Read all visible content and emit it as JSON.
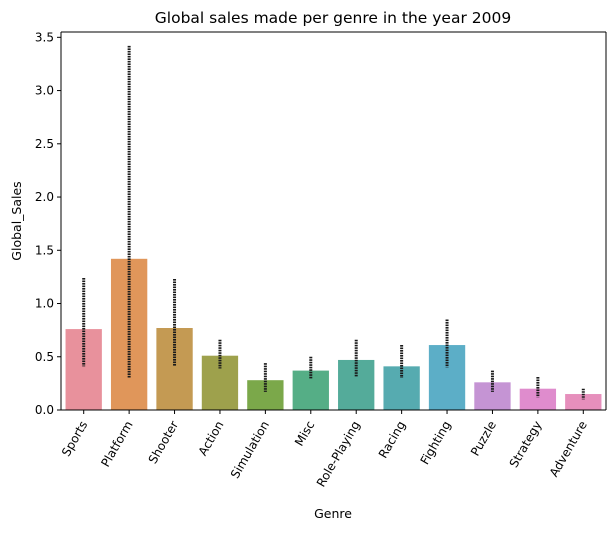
{
  "chart_data": {
    "type": "bar",
    "title": "Global sales made per genre in the year 2009",
    "xlabel": "Genre",
    "ylabel": "Global_Sales",
    "ylim": [
      0,
      3.55
    ],
    "yticks": [
      "0.0",
      "0.5",
      "1.0",
      "1.5",
      "2.0",
      "2.5",
      "3.0",
      "3.5"
    ],
    "ytick_values": [
      0,
      0.5,
      1.0,
      1.5,
      2.0,
      2.5,
      3.0,
      3.5
    ],
    "grid": false,
    "categories": [
      "Sports",
      "Platform",
      "Shooter",
      "Action",
      "Simulation",
      "Misc",
      "Role-Playing",
      "Racing",
      "Fighting",
      "Puzzle",
      "Strategy",
      "Adventure"
    ],
    "values": [
      0.76,
      1.42,
      0.77,
      0.51,
      0.28,
      0.37,
      0.47,
      0.41,
      0.61,
      0.26,
      0.2,
      0.15
    ],
    "error_low": [
      0.41,
      0.3,
      0.41,
      0.39,
      0.17,
      0.29,
      0.31,
      0.3,
      0.4,
      0.17,
      0.12,
      0.1
    ],
    "error_high": [
      1.24,
      3.42,
      1.23,
      0.66,
      0.44,
      0.5,
      0.66,
      0.61,
      0.85,
      0.37,
      0.31,
      0.2
    ],
    "colors": [
      "#e8919c",
      "#e0965a",
      "#c49a53",
      "#9ea14c",
      "#7ba84a",
      "#55ae86",
      "#54ab9a",
      "#56abb0",
      "#5caec7",
      "#c594d4",
      "#df8ccd",
      "#e68fbc"
    ],
    "error_color": "#1a1a1a"
  }
}
